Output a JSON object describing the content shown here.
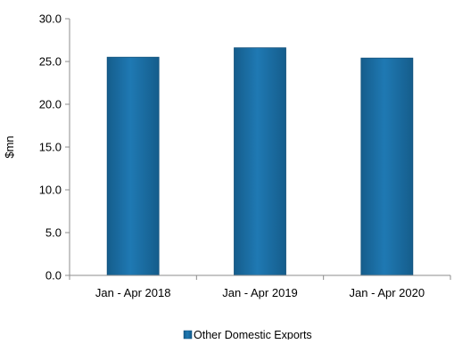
{
  "chart_data": {
    "type": "bar",
    "categories": [
      "Jan - Apr 2018",
      "Jan - Apr 2019",
      "Jan - Apr 2020"
    ],
    "series": [
      {
        "name": "Other Domestic Exports",
        "values": [
          25.5,
          26.6,
          25.4
        ],
        "color": "#1A6FA6"
      }
    ],
    "ylabel": "$mn",
    "xlabel": "",
    "ylim": [
      0,
      30
    ],
    "yticks": [
      0,
      5,
      10,
      15,
      20,
      25,
      30
    ],
    "ytick_labels": [
      "0.0",
      "5.0",
      "10.0",
      "15.0",
      "20.0",
      "25.0",
      "30.0"
    ],
    "grid": false,
    "legend": "bottom-center"
  }
}
